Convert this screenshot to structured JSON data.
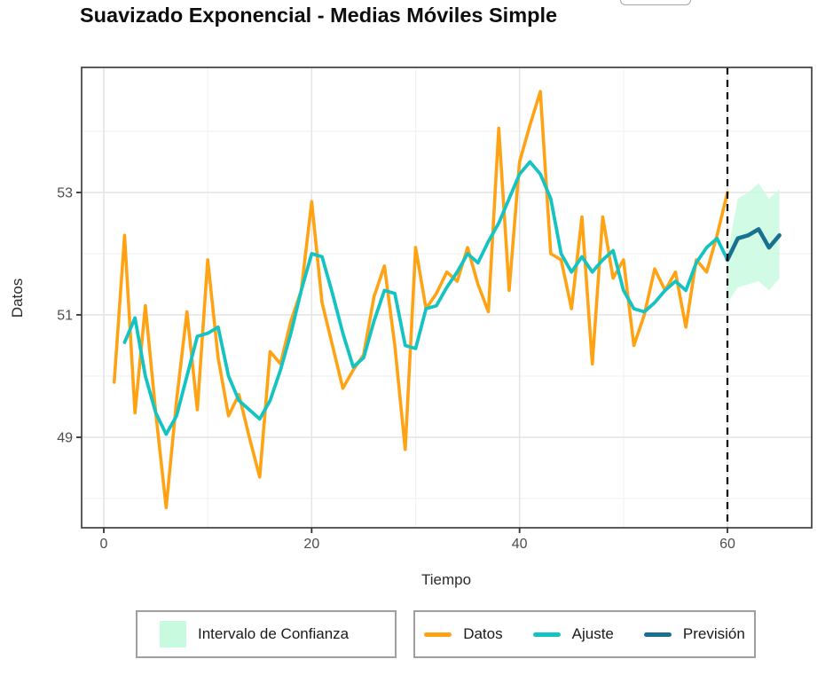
{
  "title": "Suavizado Exponencial - Medias Móviles Simple",
  "chart_data": {
    "type": "line",
    "title": "Suavizado Exponencial - Medias Móviles Simple",
    "xlabel": "Tiempo",
    "ylabel": "Datos",
    "xlim": [
      -2.1,
      68.1
    ],
    "ylim": [
      47.5,
      55.05
    ],
    "x_ticks": [
      0,
      20,
      40,
      60
    ],
    "x_minor_ticks": [
      10,
      30,
      50
    ],
    "y_ticks": [
      49,
      51,
      53
    ],
    "y_minor_ticks": [
      48,
      50,
      52,
      54
    ],
    "grid": true,
    "legend_position": "bottom",
    "forecast_start_line": {
      "x": 60,
      "style": "dashed",
      "color": "#000000"
    },
    "series": [
      {
        "name": "Datos",
        "color": "#FFA315",
        "x": [
          1,
          2,
          3,
          4,
          5,
          6,
          7,
          8,
          9,
          10,
          11,
          12,
          13,
          14,
          15,
          16,
          17,
          18,
          19,
          20,
          21,
          22,
          23,
          24,
          25,
          26,
          27,
          28,
          29,
          30,
          31,
          32,
          33,
          34,
          35,
          36,
          37,
          38,
          39,
          40,
          41,
          42,
          43,
          44,
          45,
          46,
          47,
          48,
          49,
          50,
          51,
          52,
          53,
          54,
          55,
          56,
          57,
          58,
          59,
          60
        ],
        "values": [
          49.9,
          52.3,
          49.4,
          51.15,
          49.4,
          47.85,
          49.6,
          51.05,
          49.45,
          51.9,
          50.3,
          49.35,
          49.7,
          49.0,
          48.35,
          50.4,
          50.2,
          50.9,
          51.4,
          52.85,
          51.2,
          50.5,
          49.8,
          50.1,
          50.35,
          51.3,
          51.8,
          50.5,
          48.8,
          52.1,
          51.1,
          51.35,
          51.7,
          51.55,
          52.1,
          51.5,
          51.05,
          54.05,
          51.4,
          53.5,
          54.1,
          54.65,
          52.0,
          51.9,
          51.1,
          52.6,
          50.2,
          52.6,
          51.6,
          51.9,
          50.5,
          51.0,
          51.75,
          51.4,
          51.7,
          50.8,
          51.9,
          51.7,
          52.3,
          53.0
        ]
      },
      {
        "name": "Ajuste",
        "color": "#16C3C3",
        "x": [
          2,
          3,
          4,
          5,
          6,
          7,
          8,
          9,
          10,
          11,
          12,
          13,
          14,
          15,
          16,
          17,
          18,
          19,
          20,
          21,
          22,
          23,
          24,
          25,
          26,
          27,
          28,
          29,
          30,
          31,
          32,
          33,
          34,
          35,
          36,
          37,
          38,
          39,
          40,
          41,
          42,
          43,
          44,
          45,
          46,
          47,
          48,
          49,
          50,
          51,
          52,
          53,
          54,
          55,
          56,
          57,
          58,
          59,
          60
        ],
        "values": [
          50.55,
          50.95,
          50.0,
          49.4,
          49.05,
          49.35,
          50.0,
          50.65,
          50.7,
          50.8,
          50.0,
          49.6,
          49.45,
          49.3,
          49.6,
          50.1,
          50.7,
          51.4,
          52.0,
          51.95,
          51.35,
          50.7,
          50.15,
          50.3,
          50.9,
          51.4,
          51.35,
          50.5,
          50.45,
          51.1,
          51.15,
          51.45,
          51.7,
          52.0,
          51.85,
          52.2,
          52.5,
          52.9,
          53.3,
          53.5,
          53.3,
          52.9,
          52.0,
          51.7,
          51.95,
          51.7,
          51.9,
          52.05,
          51.4,
          51.1,
          51.05,
          51.2,
          51.4,
          51.55,
          51.4,
          51.85,
          52.1,
          52.25,
          51.9
        ]
      },
      {
        "name": "Previsión",
        "color": "#19718F",
        "x": [
          60,
          61,
          62,
          63,
          64,
          65
        ],
        "values": [
          51.9,
          52.25,
          52.3,
          52.4,
          52.1,
          52.3
        ]
      }
    ],
    "confidence_band": {
      "name": "Intervalo de Confianza",
      "color": "#C7FADF",
      "x": [
        60,
        61,
        62,
        63,
        64,
        65
      ],
      "upper": [
        52.0,
        52.9,
        53.0,
        53.15,
        52.9,
        53.05
      ],
      "lower": [
        51.2,
        51.45,
        51.5,
        51.55,
        51.4,
        51.6
      ]
    }
  }
}
